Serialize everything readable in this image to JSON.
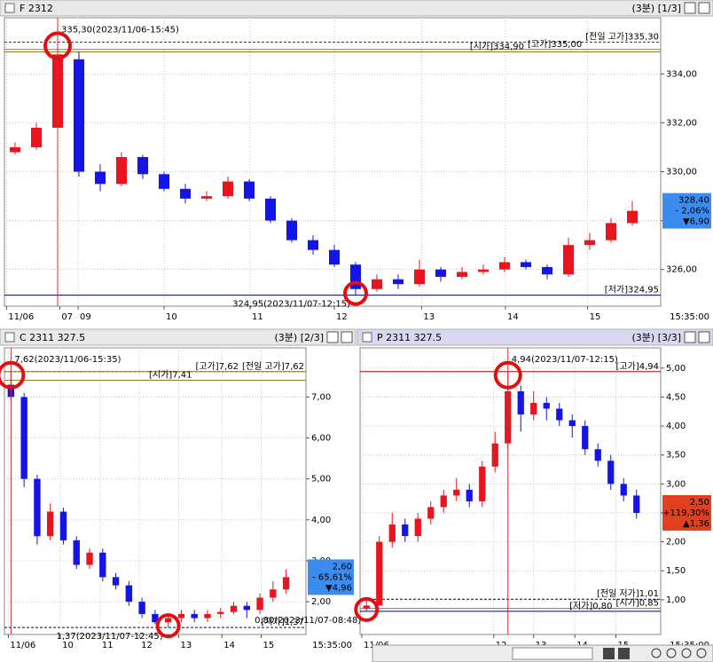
{
  "chart_data": [
    {
      "type": "candlestick",
      "title": "F 2312",
      "subtitle": "(3분) [1/3]",
      "time_label": "15:35:00",
      "up_color": "#e8141e",
      "down_color": "#1414e6",
      "open": [
        330.8,
        331.0,
        331.8,
        334.6,
        330.0,
        329.5,
        330.6,
        329.9,
        329.3,
        328.9,
        329.0,
        329.6,
        328.9,
        328.0,
        327.2,
        326.8,
        326.2,
        325.2,
        325.6,
        325.4,
        326.0,
        325.7,
        325.9,
        326.0,
        326.3,
        326.1,
        325.8,
        327.0,
        327.2,
        327.9
      ],
      "high": [
        331.2,
        332.0,
        335.3,
        334.9,
        330.3,
        330.8,
        330.7,
        330.0,
        329.5,
        329.2,
        329.8,
        329.7,
        329.0,
        328.1,
        327.4,
        327.0,
        326.3,
        325.8,
        325.8,
        326.4,
        326.1,
        326.1,
        326.2,
        326.5,
        326.4,
        326.2,
        327.3,
        327.5,
        328.1,
        328.8
      ],
      "low": [
        330.7,
        330.9,
        331.6,
        329.8,
        329.2,
        329.4,
        329.7,
        329.2,
        328.7,
        328.8,
        328.9,
        328.8,
        327.9,
        327.1,
        326.6,
        326.1,
        324.95,
        325.1,
        325.2,
        325.3,
        325.5,
        325.6,
        325.8,
        325.9,
        326.0,
        325.6,
        325.7,
        326.8,
        327.1,
        327.8
      ],
      "close": [
        331.0,
        331.8,
        334.8,
        330.0,
        329.5,
        330.6,
        329.9,
        329.3,
        328.9,
        329.0,
        329.6,
        328.9,
        328.0,
        327.2,
        326.8,
        326.2,
        325.2,
        325.6,
        325.4,
        326.0,
        325.7,
        325.9,
        326.0,
        326.3,
        326.1,
        325.8,
        327.0,
        327.2,
        327.9,
        328.4
      ],
      "xticks": [
        {
          "value": -0.4,
          "label": "11/06"
        },
        {
          "value": 2.1,
          "label": "07"
        },
        {
          "value": 2.96,
          "label": "09"
        },
        {
          "value": 7,
          "label": "10"
        },
        {
          "value": 11.04,
          "label": "11"
        },
        {
          "value": 15,
          "label": "12"
        },
        {
          "value": 19.1,
          "label": "13"
        },
        {
          "value": 23.04,
          "label": "14"
        },
        {
          "value": 26.9,
          "label": "15"
        }
      ],
      "ylim": [
        324.5,
        336.3
      ],
      "yticks": [
        {
          "value": 326,
          "label": "326,00"
        },
        {
          "value": 328,
          "label": "328,00"
        },
        {
          "value": 330,
          "label": "330,00"
        },
        {
          "value": 332,
          "label": "332,00"
        },
        {
          "value": 334,
          "label": "334,00"
        }
      ],
      "ref_lines": [
        {
          "label": "[전일 고가]335,30",
          "value": 335.3,
          "color": "#cc0000",
          "style": "dashed"
        },
        {
          "label": "[고가]335,00",
          "value": 335.0,
          "color": "#8b7d2a",
          "style": "solid"
        },
        {
          "label": "[시가]334,90",
          "value": 334.9,
          "color": "#8b7d2a",
          "style": "solid"
        },
        {
          "label": "[저가]324,95",
          "value": 324.95,
          "color": "#000080",
          "style": "solid"
        }
      ],
      "high_note": "335,30(2023/11/06-15:45)",
      "low_note": "324,95(2023/11/07-12:15)",
      "price_box": {
        "value": 328.4,
        "lines": [
          "328,40",
          "- 2,06%",
          "▼6,90"
        ],
        "color": "#3c8cf0"
      }
    },
    {
      "type": "candlestick",
      "title": "C 2311 327.5",
      "subtitle": "(3분) [2/3]",
      "time_label": "15:35:00",
      "up_color": "#e8141e",
      "down_color": "#1414e6",
      "open": [
        7.3,
        7.0,
        5.0,
        3.6,
        4.2,
        3.5,
        2.9,
        3.2,
        2.6,
        2.4,
        2.0,
        1.7,
        1.5,
        1.6,
        1.7,
        1.6,
        1.7,
        1.75,
        1.9,
        1.8,
        2.1,
        2.3
      ],
      "high": [
        7.62,
        7.1,
        5.1,
        4.4,
        4.3,
        3.6,
        3.3,
        3.3,
        2.7,
        2.5,
        2.1,
        1.8,
        1.7,
        1.8,
        1.8,
        1.8,
        1.85,
        2.0,
        2.0,
        2.2,
        2.5,
        2.8
      ],
      "low": [
        6.9,
        4.8,
        3.4,
        3.5,
        3.4,
        2.8,
        2.8,
        2.5,
        2.3,
        1.9,
        1.6,
        1.45,
        1.37,
        1.5,
        1.5,
        1.5,
        1.6,
        1.7,
        1.6,
        1.7,
        2.0,
        2.2
      ],
      "close": [
        7.0,
        5.0,
        3.6,
        4.2,
        3.5,
        2.9,
        3.2,
        2.6,
        2.4,
        2.0,
        1.7,
        1.5,
        1.6,
        1.7,
        1.6,
        1.7,
        1.75,
        1.9,
        1.8,
        2.1,
        2.3,
        2.6
      ],
      "xticks": [
        {
          "value": -0.2,
          "label": "11/06"
        },
        {
          "value": 3.77,
          "label": "10"
        },
        {
          "value": 6.8,
          "label": "11"
        },
        {
          "value": 9.8,
          "label": "12"
        },
        {
          "value": 12.8,
          "label": "13"
        },
        {
          "value": 16.1,
          "label": "14"
        },
        {
          "value": 19.1,
          "label": "15"
        }
      ],
      "ylim": [
        1.2,
        8.2
      ],
      "yticks": [
        {
          "value": 2,
          "label": "2,00"
        },
        {
          "value": 3,
          "label": "3,00"
        },
        {
          "value": 4,
          "label": "4,00"
        },
        {
          "value": 5,
          "label": "5,00"
        },
        {
          "value": 6,
          "label": "6,00"
        },
        {
          "value": 7,
          "label": "7,00"
        }
      ],
      "ref_lines": [
        {
          "label": "[전일 고가]7,62",
          "value": 7.62,
          "color": "#cc0000",
          "style": "dashed"
        },
        {
          "label": "[고가]7,62",
          "value": 7.62,
          "color": "#8b7d2a",
          "style": "solid"
        },
        {
          "label": "[시가]7,41",
          "value": 7.41,
          "color": "#8b7d2a",
          "style": "solid"
        },
        {
          "label": "[저가]1,37",
          "value": 1.37,
          "color": "#000080",
          "style": "dashed"
        }
      ],
      "high_note": "7,62(2023/11/06-15:35)",
      "low_note": "1,37(2023/11/07-12:45)",
      "price_box": {
        "value": 2.6,
        "lines": [
          "2,60",
          "- 65,61%",
          "▼4,96"
        ],
        "color": "#3c8cf0"
      }
    },
    {
      "type": "candlestick",
      "title": "P 2311 327.5",
      "subtitle": "(3분) [3/3]",
      "time_label": "15:35:00",
      "up_color": "#e8141e",
      "down_color": "#1414e6",
      "open": [
        0.85,
        0.9,
        2.0,
        2.3,
        2.1,
        2.4,
        2.6,
        2.8,
        2.9,
        2.7,
        3.3,
        3.7,
        4.6,
        4.2,
        4.4,
        4.3,
        4.1,
        4.0,
        3.6,
        3.4,
        3.0,
        2.8
      ],
      "high": [
        1.0,
        2.1,
        2.5,
        2.4,
        2.5,
        2.7,
        2.9,
        3.1,
        3.0,
        3.4,
        3.9,
        4.94,
        4.7,
        4.6,
        4.5,
        4.4,
        4.2,
        4.1,
        3.7,
        3.5,
        3.1,
        2.9
      ],
      "low": [
        0.8,
        0.9,
        1.9,
        2.0,
        2.0,
        2.3,
        2.5,
        2.7,
        2.6,
        2.6,
        3.2,
        3.6,
        3.9,
        4.1,
        4.1,
        4.0,
        3.8,
        3.5,
        3.3,
        2.9,
        2.7,
        2.4
      ],
      "close": [
        0.9,
        2.0,
        2.3,
        2.1,
        2.4,
        2.6,
        2.8,
        2.9,
        2.7,
        3.3,
        3.7,
        4.6,
        4.2,
        4.4,
        4.3,
        4.1,
        4.0,
        3.6,
        3.4,
        3.0,
        2.8,
        2.5
      ],
      "xticks": [
        {
          "value": -0.36,
          "label": "11/06"
        },
        {
          "value": 9.9,
          "label": "12"
        },
        {
          "value": 13,
          "label": "13"
        },
        {
          "value": 16.2,
          "label": "14"
        },
        {
          "value": 19.4,
          "label": "15"
        }
      ],
      "ylim": [
        0.4,
        5.35
      ],
      "yticks": [
        {
          "value": 1,
          "label": "1,00"
        },
        {
          "value": 1.5,
          "label": "1,50"
        },
        {
          "value": 2,
          "label": "2,00"
        },
        {
          "value": 2.5,
          "label": "2,50"
        },
        {
          "value": 3,
          "label": "3,00"
        },
        {
          "value": 3.5,
          "label": "3,50"
        },
        {
          "value": 4,
          "label": "4,00"
        },
        {
          "value": 4.5,
          "label": "4,50"
        },
        {
          "value": 5,
          "label": "5,00"
        }
      ],
      "ref_lines": [
        {
          "label": "[고가]4,94",
          "value": 4.94,
          "color": "#cc0000",
          "style": "solid"
        },
        {
          "label": "[전일 저가]1,01",
          "value": 1.01,
          "color": "#000080",
          "style": "dashed"
        },
        {
          "label": "[시가]0,85",
          "value": 0.85,
          "color": "#8b7d2a",
          "style": "solid"
        },
        {
          "label": "[저가]0,80",
          "value": 0.8,
          "color": "#000080",
          "style": "solid"
        }
      ],
      "high_note": "4,94(2023/11/07-12:15)",
      "low_note": "0,80(2023/11/07-08:48)",
      "price_box": {
        "value": 2.5,
        "lines": [
          "2,50",
          "+119,30%",
          "▲1,36"
        ],
        "color": "#e04020"
      }
    }
  ]
}
